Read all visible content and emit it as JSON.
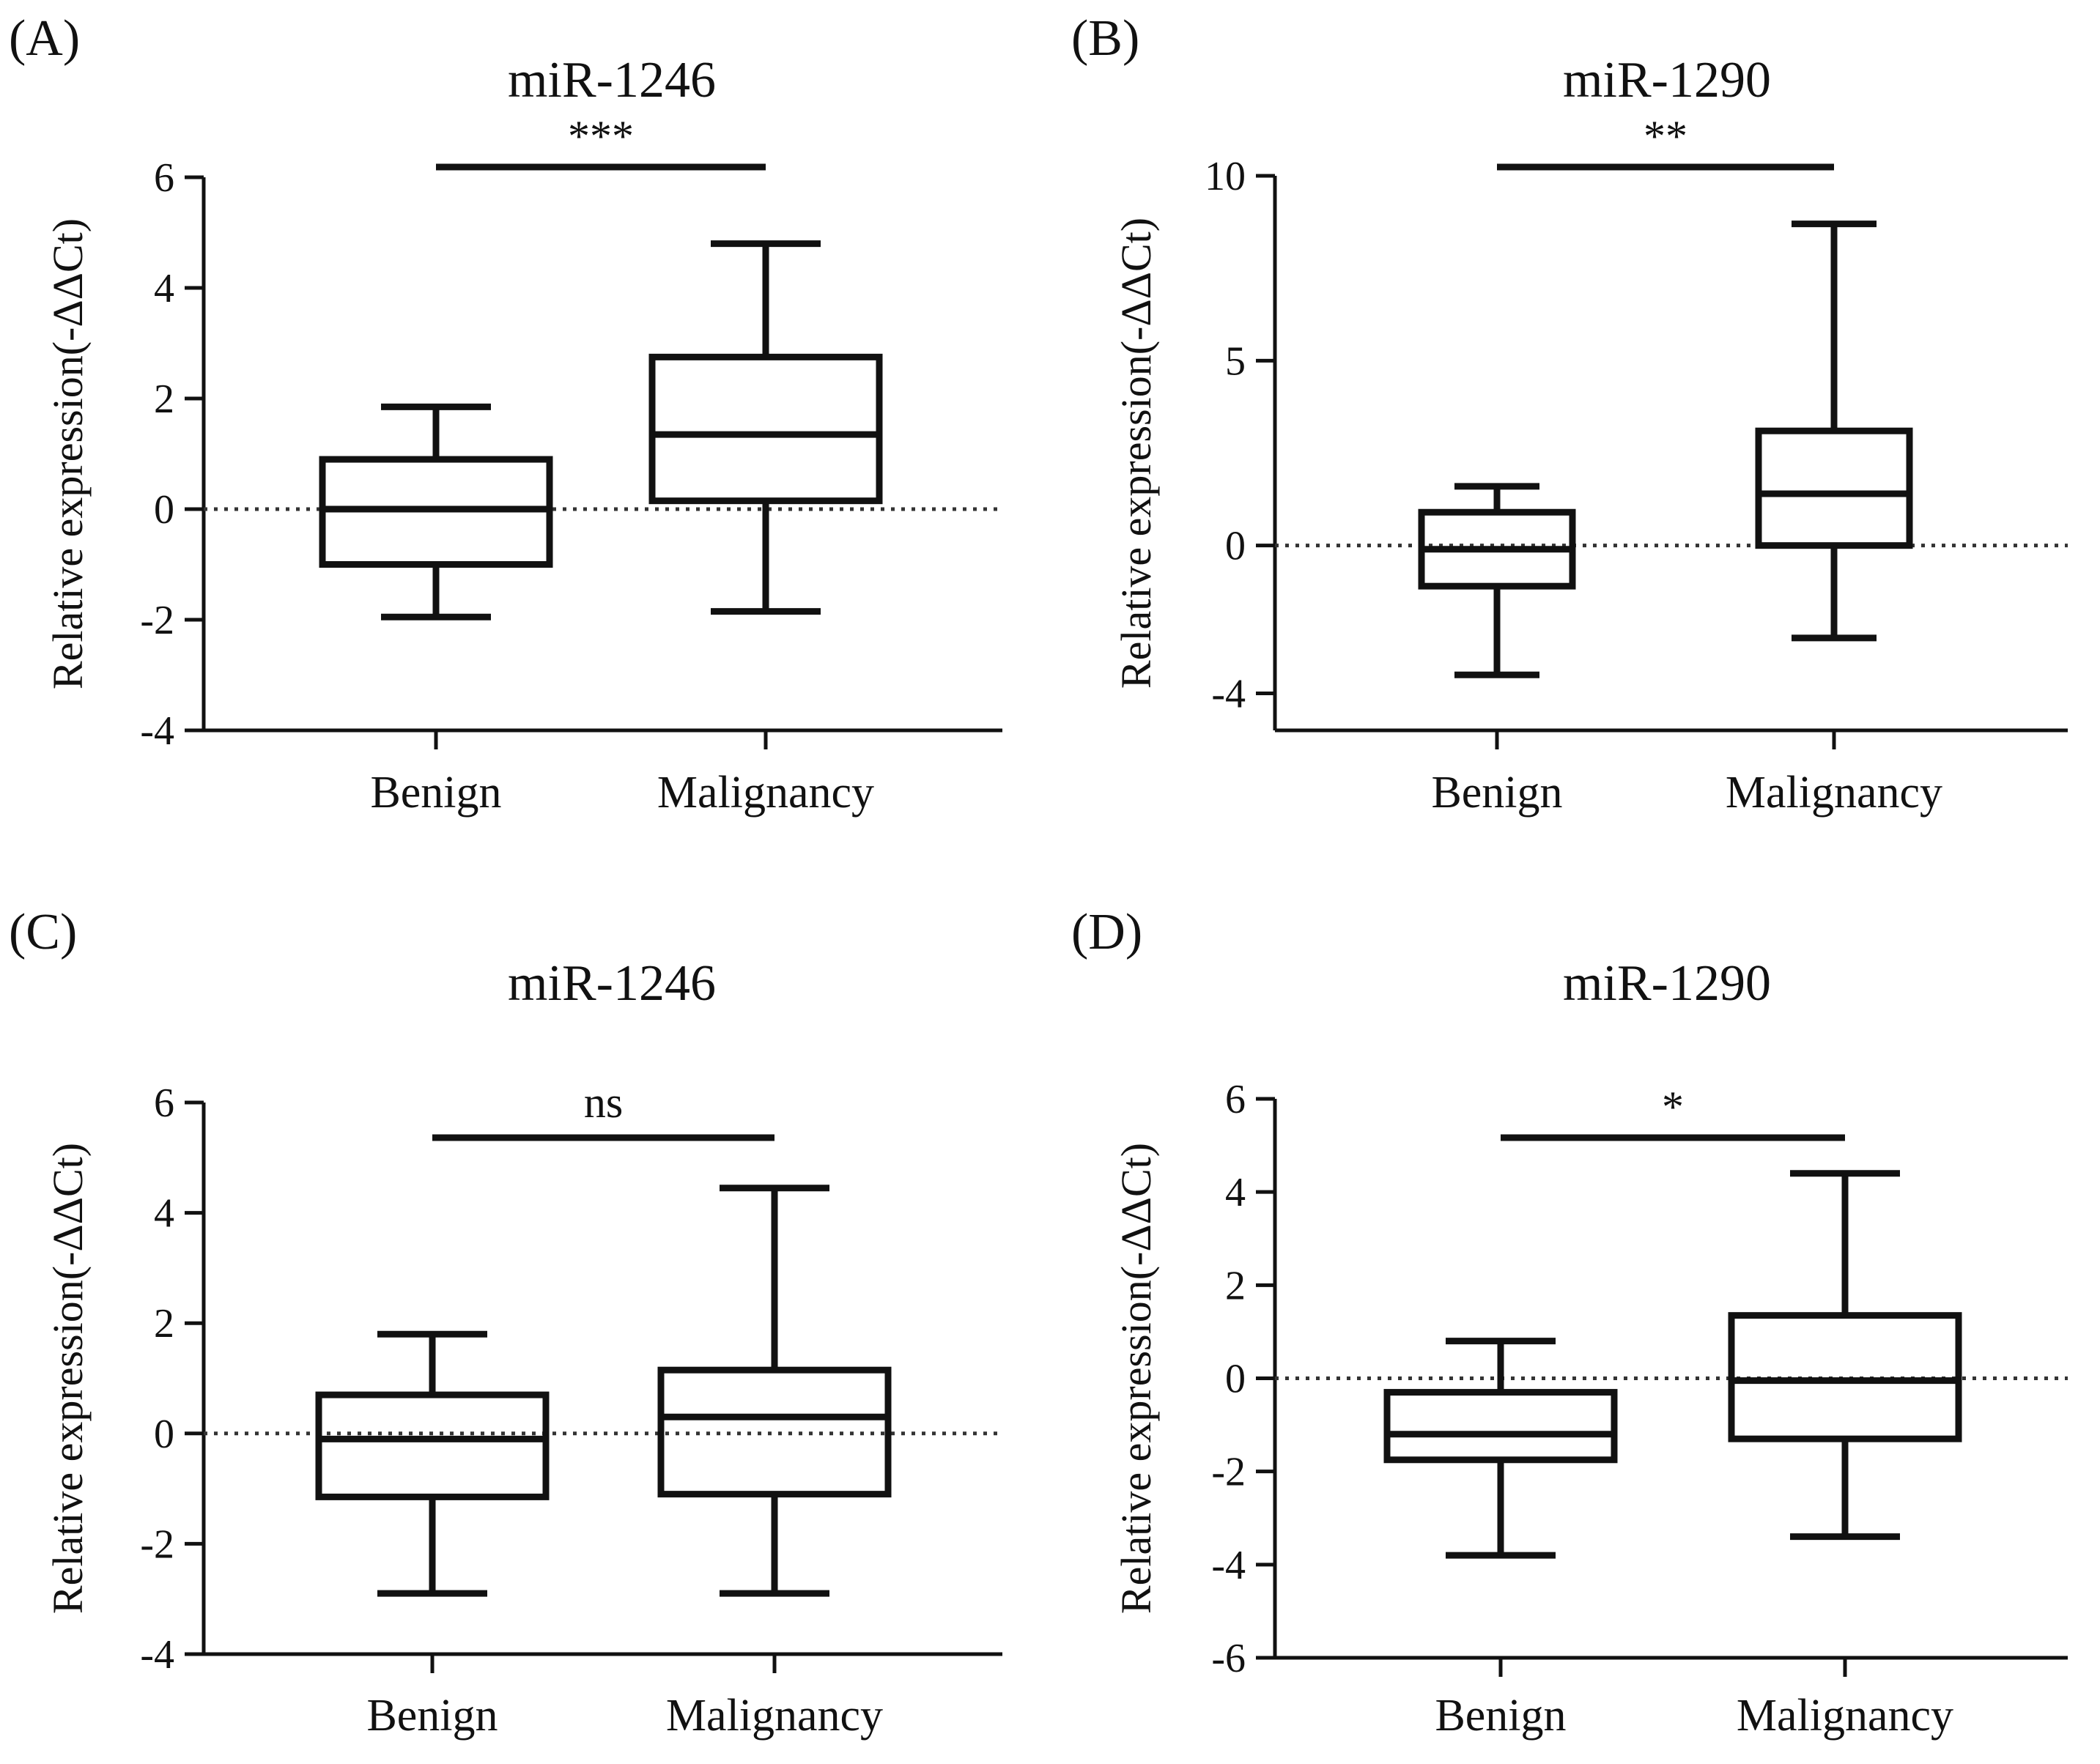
{
  "figure_title": "Relative expression of miR-1246 and miR-1290 in benign vs. malignancy",
  "chart_data": [
    {
      "type": "box",
      "panel": "(A)",
      "title": "miR-1246",
      "xlabel": "",
      "ylabel": "Relative expression(-ΔΔCt)",
      "ylim": [
        -4,
        6
      ],
      "yticks": [
        6,
        4,
        2,
        0,
        -2,
        -4
      ],
      "reference_line": 0,
      "significance": "***",
      "categories": [
        "Benign",
        "Malignancy"
      ],
      "boxes": [
        {
          "category": "Benign",
          "min": -1.95,
          "q1": -1.0,
          "median": 0.0,
          "q3": 0.9,
          "max": 1.85
        },
        {
          "category": "Malignancy",
          "min": -1.85,
          "q1": 0.15,
          "median": 1.35,
          "q3": 2.75,
          "max": 4.8
        }
      ]
    },
    {
      "type": "box",
      "panel": "(B)",
      "title": "miR-1290",
      "xlabel": "",
      "ylabel": "Relative expression(-ΔΔCt)",
      "ylim": [
        -5,
        10
      ],
      "yticks": [
        10,
        5,
        0,
        -4
      ],
      "reference_line": 0,
      "significance": "**",
      "categories": [
        "Benign",
        "Malignancy"
      ],
      "boxes": [
        {
          "category": "Benign",
          "min": -3.5,
          "q1": -1.1,
          "median": -0.1,
          "q3": 0.9,
          "max": 1.6
        },
        {
          "category": "Malignancy",
          "min": -2.5,
          "q1": 0.0,
          "median": 1.4,
          "q3": 3.1,
          "max": 8.7
        }
      ]
    },
    {
      "type": "box",
      "panel": "(C)",
      "title": "miR-1246",
      "xlabel": "",
      "ylabel": "Relative expression(-ΔΔCt)",
      "ylim": [
        -4,
        6
      ],
      "yticks": [
        6,
        4,
        2,
        0,
        -2,
        -4
      ],
      "reference_line": 0,
      "significance": "ns",
      "categories": [
        "Benign",
        "Malignancy"
      ],
      "boxes": [
        {
          "category": "Benign",
          "min": -2.9,
          "q1": -1.15,
          "median": -0.1,
          "q3": 0.7,
          "max": 1.8
        },
        {
          "category": "Malignancy",
          "min": -2.9,
          "q1": -1.1,
          "median": 0.3,
          "q3": 1.15,
          "max": 4.45
        }
      ]
    },
    {
      "type": "box",
      "panel": "(D)",
      "title": "miR-1290",
      "xlabel": "",
      "ylabel": "Relative expression(-ΔΔCt)",
      "ylim": [
        -6,
        6
      ],
      "yticks": [
        6,
        4,
        2,
        0,
        -2,
        -4,
        -6
      ],
      "reference_line": 0,
      "significance": "*",
      "categories": [
        "Benign",
        "Malignancy"
      ],
      "boxes": [
        {
          "category": "Benign",
          "min": -3.8,
          "q1": -1.75,
          "median": -1.2,
          "q3": -0.3,
          "max": 0.8
        },
        {
          "category": "Malignancy",
          "min": -3.4,
          "q1": -1.3,
          "median": -0.05,
          "q3": 1.35,
          "max": 4.4
        }
      ]
    }
  ]
}
